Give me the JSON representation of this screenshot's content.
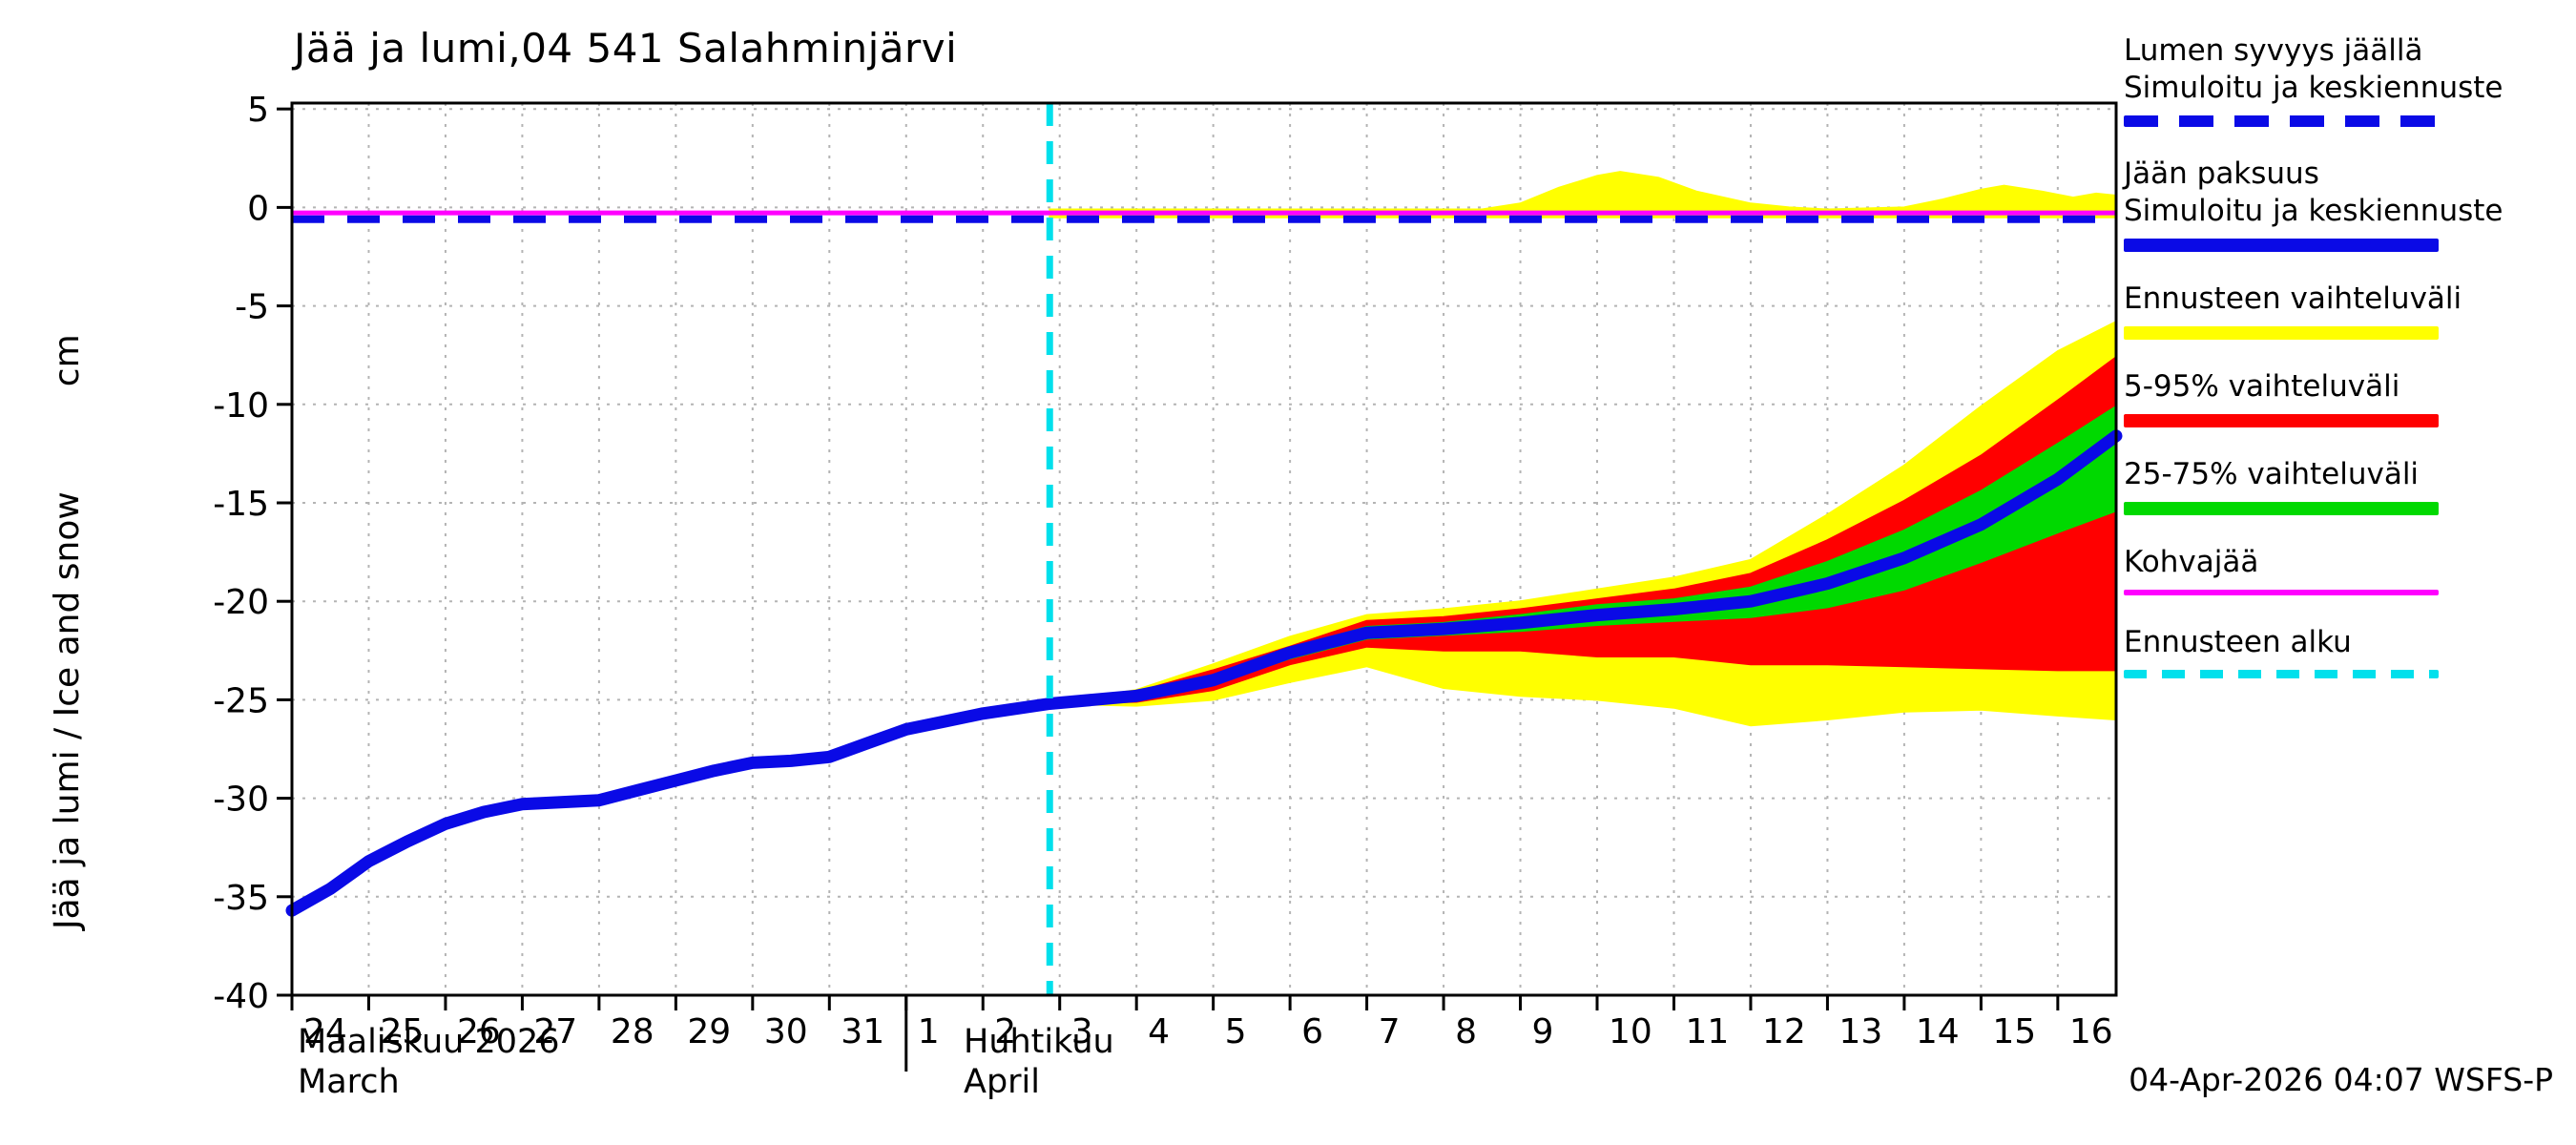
{
  "footer": {
    "timestamp": "04-Apr-2026 04:07 WSFS-P"
  },
  "legend": {
    "items": [
      {
        "name": "snow-depth-on-ice",
        "lines": [
          "Lumen syvyys jäällä",
          "Simuloitu ja keskiennuste"
        ],
        "style": "dashed",
        "color": "#0a0ae6",
        "thickness": 12
      },
      {
        "name": "ice-thickness",
        "lines": [
          "Jään paksuus",
          "Simuloitu ja keskiennuste"
        ],
        "style": "solid",
        "color": "#0a0ae6",
        "thickness": 14
      },
      {
        "name": "forecast-range",
        "lines": [
          "Ennusteen vaihteluväli"
        ],
        "style": "solid",
        "color": "#ffff00",
        "thickness": 14
      },
      {
        "name": "range-5-95",
        "lines": [
          "5-95% vaihteluväli"
        ],
        "style": "solid",
        "color": "#ff0000",
        "thickness": 14
      },
      {
        "name": "range-25-75",
        "lines": [
          "25-75% vaihteluväli"
        ],
        "style": "solid",
        "color": "#00d900",
        "thickness": 14
      },
      {
        "name": "kohvajaa",
        "lines": [
          "Kohvajää"
        ],
        "style": "solid",
        "color": "#ff00ff",
        "thickness": 6
      },
      {
        "name": "forecast-start",
        "lines": [
          "Ennusteen alku"
        ],
        "style": "dashed-fine",
        "color": "#00e0ec",
        "thickness": 9
      }
    ]
  },
  "chart_data": {
    "type": "line",
    "title": "Jää ja lumi,04 541 Salahminjärvi",
    "ylabel": "Jää ja lumi / Ice and snow",
    "yunit": "cm",
    "ylim": [
      -40,
      5.3
    ],
    "xlim_days": [
      0,
      23.76
    ],
    "grid": true,
    "legend_position": "right",
    "y_ticks": [
      {
        "v": 5,
        "label": "5"
      },
      {
        "v": 0,
        "label": "0"
      },
      {
        "v": -5,
        "label": "-5"
      },
      {
        "v": -10,
        "label": "-10"
      },
      {
        "v": -15,
        "label": "-15"
      },
      {
        "v": -20,
        "label": "-20"
      },
      {
        "v": -25,
        "label": "-25"
      },
      {
        "v": -30,
        "label": "-30"
      },
      {
        "v": -35,
        "label": "-35"
      },
      {
        "v": -40,
        "label": "-40"
      }
    ],
    "x_tick_labels": [
      "24",
      "25",
      "26",
      "27",
      "28",
      "29",
      "30",
      "31",
      "1",
      "2",
      "3",
      "4",
      "5",
      "6",
      "7",
      "8",
      "9",
      "10",
      "11",
      "12",
      "13",
      "14",
      "15",
      "16"
    ],
    "months": [
      {
        "label": "Maaliskuu 2026",
        "sublabel": "March",
        "day": 0.07
      },
      {
        "label": "Huhtikuu",
        "sublabel": "April",
        "day": 8.75
      }
    ],
    "month_boundary_day": 8,
    "forecast_start": {
      "day": 9.87,
      "color": "#00e0ec"
    },
    "ice_median": {
      "name": "ice-thickness-simulated",
      "color": "#0a0ae6",
      "x": [
        0,
        0.5,
        1,
        1.5,
        2,
        2.5,
        3,
        4,
        4.5,
        5,
        5.5,
        6,
        6.5,
        7,
        7.5,
        8,
        8.5,
        9,
        9.87,
        11,
        12,
        13,
        14,
        15,
        16,
        17,
        18,
        19,
        20,
        21,
        22,
        23,
        23.76
      ],
      "values": [
        -35.7,
        -34.6,
        -33.2,
        -32.2,
        -31.3,
        -30.7,
        -30.3,
        -30.1,
        -29.6,
        -29.1,
        -28.6,
        -28.2,
        -28.1,
        -27.9,
        -27.2,
        -26.5,
        -26.1,
        -25.7,
        -25.2,
        -24.8,
        -24.0,
        -22.6,
        -21.6,
        -21.4,
        -21.1,
        -20.7,
        -20.4,
        -20.0,
        -19.1,
        -17.8,
        -16.1,
        -13.8,
        -11.6
      ]
    },
    "bands": [
      {
        "name": "forecast-range",
        "color": "#ffff00",
        "x": [
          9.87,
          11,
          12,
          13,
          14,
          15,
          16,
          17,
          18,
          19,
          20,
          21,
          22,
          23,
          23.76
        ],
        "upper": [
          -25.2,
          -24.5,
          -23.2,
          -21.8,
          -20.7,
          -20.4,
          -20.0,
          -19.4,
          -18.8,
          -17.9,
          -15.6,
          -13.1,
          -10.1,
          -7.3,
          -5.8
        ],
        "lower": [
          -25.2,
          -25.3,
          -25.0,
          -24.1,
          -23.3,
          -24.4,
          -24.8,
          -25.0,
          -25.4,
          -26.3,
          -26.0,
          -25.6,
          -25.5,
          -25.8,
          -26.0
        ]
      },
      {
        "name": "range-5-95",
        "color": "#ff0000",
        "x": [
          9.87,
          11,
          12,
          13,
          14,
          15,
          16,
          17,
          18,
          19,
          20,
          21,
          22,
          23,
          23.76
        ],
        "upper": [
          -25.2,
          -24.6,
          -23.5,
          -22.3,
          -21.0,
          -20.8,
          -20.4,
          -19.9,
          -19.4,
          -18.6,
          -16.9,
          -14.9,
          -12.6,
          -9.8,
          -7.6
        ],
        "lower": [
          -25.2,
          -25.1,
          -24.5,
          -23.2,
          -22.3,
          -22.5,
          -22.5,
          -22.8,
          -22.8,
          -23.2,
          -23.2,
          -23.3,
          -23.4,
          -23.5,
          -23.5
        ]
      },
      {
        "name": "range-25-75",
        "color": "#00d900",
        "x": [
          9.87,
          11,
          12,
          13,
          14,
          15,
          16,
          17,
          18,
          19,
          20,
          21,
          22,
          23,
          23.76
        ],
        "upper": [
          -25.2,
          -24.7,
          -23.8,
          -22.4,
          -21.3,
          -21.1,
          -20.7,
          -20.2,
          -19.9,
          -19.3,
          -18.0,
          -16.4,
          -14.4,
          -12.0,
          -10.1
        ],
        "lower": [
          -25.2,
          -24.9,
          -24.2,
          -22.9,
          -21.9,
          -21.7,
          -21.5,
          -21.2,
          -21.0,
          -20.8,
          -20.3,
          -19.4,
          -18.0,
          -16.5,
          -15.4
        ]
      }
    ],
    "snow_band": {
      "name": "snow-forecast-range",
      "color": "#ffff00",
      "x": [
        9.87,
        15.5,
        16,
        16.5,
        17,
        17.3,
        17.8,
        18.3,
        19,
        19.5,
        20,
        21,
        21.5,
        22,
        22.3,
        22.8,
        23.2,
        23.5,
        23.76
      ],
      "upper": [
        -0.1,
        -0.1,
        0.2,
        1.0,
        1.6,
        1.8,
        1.5,
        0.8,
        0.2,
        0.0,
        -0.1,
        0.0,
        0.4,
        0.9,
        1.1,
        0.8,
        0.5,
        0.7,
        0.6
      ],
      "lower": -0.5
    },
    "kohvajaa_line": {
      "y": -0.28,
      "color": "#ff00ff"
    },
    "snow_line": {
      "y": -0.6,
      "color": "#0a0ae6"
    },
    "colors": {
      "grid": "#b4b4b4",
      "frame": "#000000"
    }
  }
}
